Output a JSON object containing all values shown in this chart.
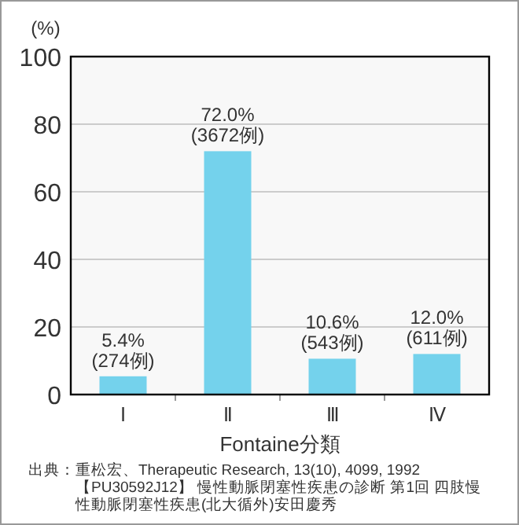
{
  "chart_data": {
    "type": "bar",
    "ylabel": "(%)",
    "xlabel": "Fontaine分類",
    "categories": [
      "Ⅰ",
      "Ⅱ",
      "Ⅲ",
      "Ⅳ"
    ],
    "values": [
      5.4,
      72.0,
      10.6,
      12.0
    ],
    "value_labels": [
      "5.4%\n(274例)",
      "72.0%\n(3672例)",
      "10.6%\n(543例)",
      "12.0%\n(611例)"
    ],
    "color": "#74d2ec",
    "ylim": [
      0,
      100
    ],
    "yticks": [
      0,
      20,
      40,
      60,
      80,
      100
    ],
    "grid": "y",
    "annotations": [
      "出典：重松宏、Therapeutic Research, 13(10), 4099, 1992\n【PU30592J12】 慢性動脈閉塞性疾患の診断 第1回 四肢慢性動脈閉塞性疾患(北大循外)安田慶秀"
    ]
  }
}
